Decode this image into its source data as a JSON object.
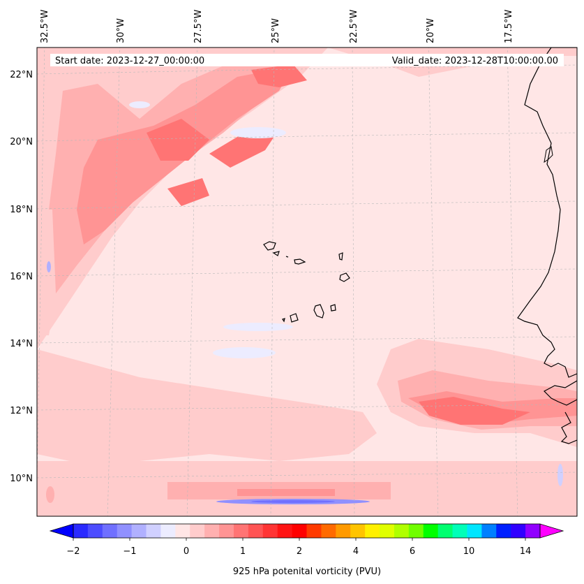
{
  "map": {
    "start_date": "Start date: 2023-12-27_00:00:00",
    "valid_date": "Valid_date: 2023-12-28T10:00:00.00",
    "variable": "925 hPa potenital vorticity (PVU)",
    "lon_labels": [
      "32.5°W",
      "30°W",
      "27.5°W",
      "25°W",
      "22.5°W",
      "20°W",
      "17.5°W"
    ],
    "lat_labels": [
      "22°N",
      "20°N",
      "18°N",
      "16°N",
      "14°N",
      "12°N",
      "10°N"
    ]
  },
  "colorbar": {
    "tick_labels": [
      "−2",
      "−1",
      "0",
      "1",
      "2",
      "4",
      "6",
      "10",
      "14"
    ],
    "colors": [
      "#0000ff",
      "#2a2aff",
      "#4d4dff",
      "#7070ff",
      "#9090ff",
      "#b0b0ff",
      "#d0d0ff",
      "#ececff",
      "#ffe6e6",
      "#ffcccc",
      "#ffb0b0",
      "#ff9494",
      "#ff7474",
      "#ff5454",
      "#ff3434",
      "#ff1414",
      "#ff0000",
      "#ff3a00",
      "#ff6a00",
      "#ff9a00",
      "#ffc400",
      "#fff000",
      "#e0ff00",
      "#b0ff00",
      "#70ff00",
      "#00ff00",
      "#00ff70",
      "#00ffb8",
      "#00e6ff",
      "#0080ff",
      "#0020ff",
      "#3000ff",
      "#9000ff",
      "#ff00ff"
    ]
  }
}
